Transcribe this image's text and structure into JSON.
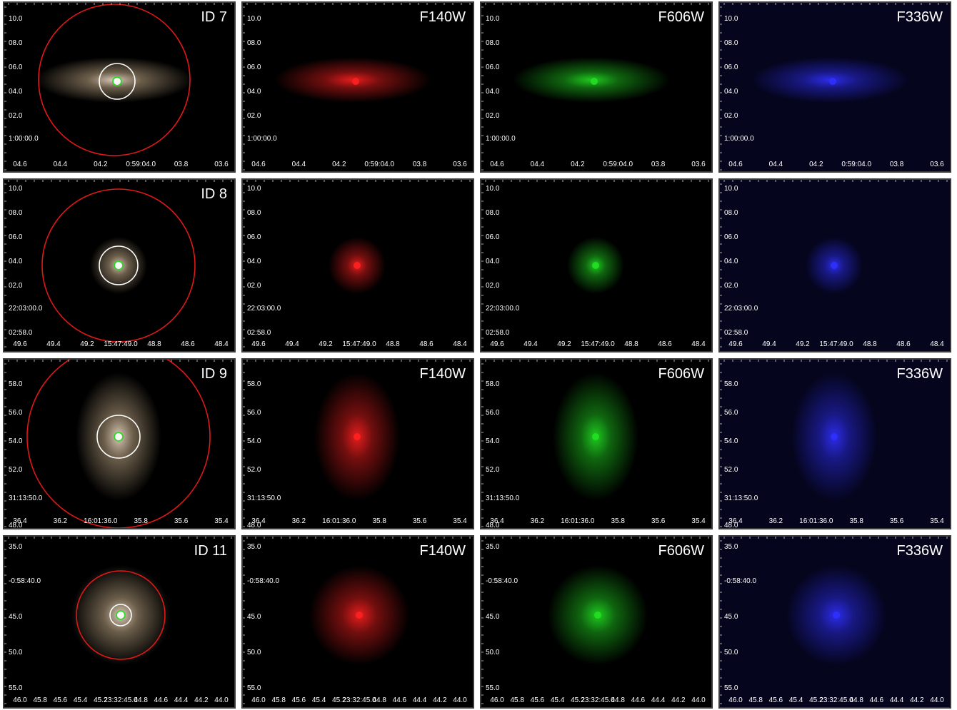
{
  "colors": {
    "rgb_body": "#b09a7a",
    "rgb_core": "#e8d8c8",
    "red": "#ff2020",
    "green": "#22e022",
    "blue": "#3030ff",
    "aperture_outer": "#e01818",
    "aperture_inner": "#ffffff",
    "aperture_center": "#22e022",
    "bg_black": "#000000",
    "bg_blue": "#05051e"
  },
  "rows": [
    {
      "y_labels": [
        "10.0",
        "08.0",
        "06.0",
        "04.0",
        "02.0",
        "1:00:00.0"
      ],
      "x_labels": [
        "04.6",
        "04.4",
        "04.2",
        "0:59:04.0",
        "03.8",
        "03.6"
      ],
      "panels": [
        {
          "label": "ID 7",
          "kind": "rgb"
        },
        {
          "label": "F140W",
          "kind": "red"
        },
        {
          "label": "F606W",
          "kind": "green"
        },
        {
          "label": "F336W",
          "kind": "blue"
        }
      ]
    },
    {
      "y_labels": [
        "10.0",
        "08.0",
        "06.0",
        "04.0",
        "02.0",
        "22:03:00.0",
        "02:58.0"
      ],
      "x_labels": [
        "49.6",
        "49.4",
        "49.2",
        "15:47:49.0",
        "48.8",
        "48.6",
        "48.4"
      ],
      "panels": [
        {
          "label": "ID 8",
          "kind": "rgb"
        },
        {
          "label": "",
          "kind": "red"
        },
        {
          "label": "",
          "kind": "green"
        },
        {
          "label": "",
          "kind": "blue"
        }
      ]
    },
    {
      "y_labels": [
        "58.0",
        "56.0",
        "54.0",
        "52.0",
        "31:13:50.0",
        "48.0"
      ],
      "x_labels": [
        "36.4",
        "36.2",
        "16:01:36.0",
        "35.8",
        "35.6",
        "35.4"
      ],
      "panels": [
        {
          "label": "ID 9",
          "kind": "rgb"
        },
        {
          "label": "F140W",
          "kind": "red"
        },
        {
          "label": "F606W",
          "kind": "green"
        },
        {
          "label": "F336W",
          "kind": "blue"
        }
      ]
    },
    {
      "y_labels": [
        "35.0",
        "-0:58:40.0",
        "45.0",
        "50.0",
        "55.0"
      ],
      "x_labels": [
        "46.0",
        "45.8",
        "45.6",
        "45.4",
        "45.2",
        "23:32:45.0",
        "44.8",
        "44.6",
        "44.4",
        "44.2",
        "44.0"
      ],
      "panels": [
        {
          "label": "ID 11",
          "kind": "rgb"
        },
        {
          "label": "F140W",
          "kind": "red"
        },
        {
          "label": "F606W",
          "kind": "green"
        },
        {
          "label": "F336W",
          "kind": "blue"
        }
      ]
    }
  ]
}
